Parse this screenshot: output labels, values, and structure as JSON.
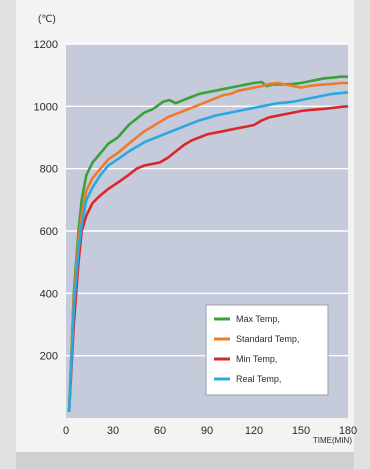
{
  "chart_data": {
    "type": "line",
    "title": "",
    "ylabel": "(℃)",
    "xlabel": "TIME(MIN)",
    "xlim": [
      0,
      180
    ],
    "ylim": [
      0,
      1200
    ],
    "x_ticks": [
      "0",
      "30",
      "60",
      "90",
      "120",
      "150",
      "180"
    ],
    "y_ticks": [
      "200",
      "400",
      "600",
      "800",
      "1000",
      "1200"
    ],
    "grid": "horizontal",
    "legend_position": "bottom-right",
    "series": [
      {
        "name": "Max Temp,",
        "color": "#3aa13a",
        "points": [
          [
            2,
            20
          ],
          [
            5,
            400
          ],
          [
            8,
            600
          ],
          [
            10,
            700
          ],
          [
            13,
            780
          ],
          [
            17,
            820
          ],
          [
            22,
            850
          ],
          [
            27,
            880
          ],
          [
            33,
            900
          ],
          [
            40,
            940
          ],
          [
            45,
            960
          ],
          [
            50,
            980
          ],
          [
            55,
            990
          ],
          [
            58,
            1000
          ],
          [
            62,
            1015
          ],
          [
            66,
            1020
          ],
          [
            70,
            1010
          ],
          [
            75,
            1020
          ],
          [
            80,
            1030
          ],
          [
            85,
            1040
          ],
          [
            90,
            1045
          ],
          [
            95,
            1050
          ],
          [
            100,
            1055
          ],
          [
            105,
            1060
          ],
          [
            110,
            1065
          ],
          [
            115,
            1070
          ],
          [
            120,
            1075
          ],
          [
            125,
            1078
          ],
          [
            128,
            1065
          ],
          [
            132,
            1070
          ],
          [
            138,
            1070
          ],
          [
            145,
            1072
          ],
          [
            150,
            1075
          ],
          [
            155,
            1080
          ],
          [
            160,
            1085
          ],
          [
            165,
            1090
          ],
          [
            170,
            1092
          ],
          [
            175,
            1095
          ],
          [
            180,
            1095
          ]
        ]
      },
      {
        "name": "Standard Temp,",
        "color": "#f07a2a",
        "points": [
          [
            2,
            20
          ],
          [
            5,
            380
          ],
          [
            8,
            570
          ],
          [
            10,
            650
          ],
          [
            13,
            730
          ],
          [
            17,
            770
          ],
          [
            22,
            800
          ],
          [
            27,
            830
          ],
          [
            33,
            850
          ],
          [
            40,
            880
          ],
          [
            45,
            900
          ],
          [
            50,
            920
          ],
          [
            55,
            935
          ],
          [
            60,
            950
          ],
          [
            65,
            965
          ],
          [
            70,
            975
          ],
          [
            75,
            985
          ],
          [
            80,
            995
          ],
          [
            85,
            1005
          ],
          [
            90,
            1015
          ],
          [
            95,
            1025
          ],
          [
            100,
            1035
          ],
          [
            105,
            1040
          ],
          [
            110,
            1050
          ],
          [
            115,
            1055
          ],
          [
            120,
            1060
          ],
          [
            125,
            1065
          ],
          [
            130,
            1072
          ],
          [
            135,
            1075
          ],
          [
            140,
            1070
          ],
          [
            145,
            1065
          ],
          [
            150,
            1060
          ],
          [
            155,
            1065
          ],
          [
            160,
            1068
          ],
          [
            165,
            1070
          ],
          [
            170,
            1072
          ],
          [
            175,
            1075
          ],
          [
            180,
            1075
          ]
        ]
      },
      {
        "name": "Min Temp,",
        "color": "#d8282c",
        "points": [
          [
            2,
            20
          ],
          [
            5,
            300
          ],
          [
            8,
            500
          ],
          [
            10,
            600
          ],
          [
            13,
            650
          ],
          [
            17,
            690
          ],
          [
            22,
            715
          ],
          [
            27,
            735
          ],
          [
            33,
            755
          ],
          [
            40,
            780
          ],
          [
            45,
            800
          ],
          [
            50,
            810
          ],
          [
            55,
            815
          ],
          [
            60,
            820
          ],
          [
            65,
            835
          ],
          [
            70,
            855
          ],
          [
            75,
            875
          ],
          [
            80,
            890
          ],
          [
            85,
            900
          ],
          [
            90,
            910
          ],
          [
            95,
            915
          ],
          [
            100,
            920
          ],
          [
            105,
            925
          ],
          [
            110,
            930
          ],
          [
            115,
            935
          ],
          [
            120,
            940
          ],
          [
            125,
            955
          ],
          [
            130,
            965
          ],
          [
            135,
            970
          ],
          [
            140,
            975
          ],
          [
            145,
            980
          ],
          [
            150,
            985
          ],
          [
            155,
            988
          ],
          [
            160,
            990
          ],
          [
            165,
            992
          ],
          [
            170,
            995
          ],
          [
            175,
            998
          ],
          [
            180,
            1000
          ]
        ]
      },
      {
        "name": "Real Temp,",
        "color": "#2aa8e0",
        "points": [
          [
            2,
            20
          ],
          [
            5,
            350
          ],
          [
            8,
            540
          ],
          [
            10,
            620
          ],
          [
            13,
            700
          ],
          [
            17,
            740
          ],
          [
            22,
            780
          ],
          [
            27,
            810
          ],
          [
            33,
            830
          ],
          [
            40,
            855
          ],
          [
            45,
            870
          ],
          [
            50,
            885
          ],
          [
            55,
            895
          ],
          [
            60,
            905
          ],
          [
            65,
            915
          ],
          [
            70,
            925
          ],
          [
            75,
            935
          ],
          [
            80,
            945
          ],
          [
            85,
            955
          ],
          [
            90,
            962
          ],
          [
            95,
            970
          ],
          [
            100,
            975
          ],
          [
            105,
            980
          ],
          [
            110,
            985
          ],
          [
            115,
            990
          ],
          [
            120,
            995
          ],
          [
            125,
            1000
          ],
          [
            130,
            1005
          ],
          [
            135,
            1010
          ],
          [
            140,
            1012
          ],
          [
            145,
            1015
          ],
          [
            150,
            1020
          ],
          [
            155,
            1025
          ],
          [
            160,
            1030
          ],
          [
            165,
            1035
          ],
          [
            170,
            1040
          ],
          [
            175,
            1042
          ],
          [
            180,
            1045
          ]
        ]
      }
    ]
  }
}
